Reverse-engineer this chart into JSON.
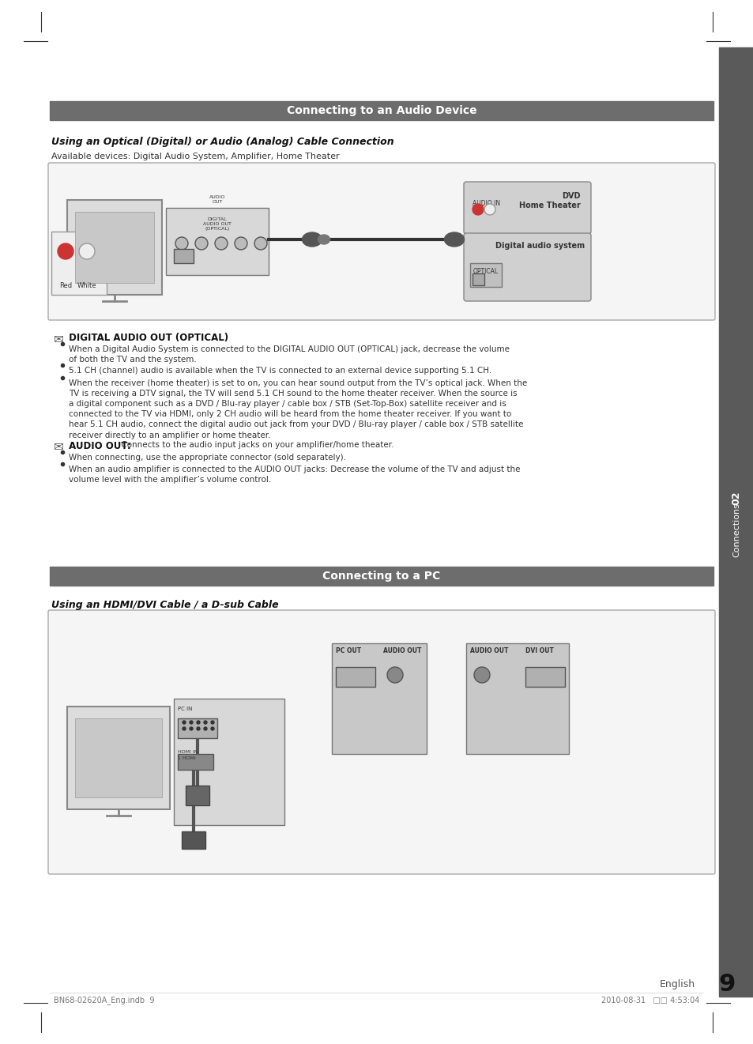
{
  "page_bg": "#ffffff",
  "header_bar_color": "#6d6d6d",
  "header_text_color": "#ffffff",
  "section1_title": "Connecting to an Audio Device",
  "section2_title": "Connecting to a PC",
  "subsection1_title": "Using an Optical (Digital) or Audio (Analog) Cable Connection",
  "subsection2_title": "Using an HDMI/DVI Cable / a D-sub Cable",
  "available_devices_text": "Available devices: Digital Audio System, Amplifier, Home Theater",
  "sidebar_text": "02  Connections",
  "sidebar_bg": "#5a5a5a",
  "page_number": "9",
  "page_number_label": "English",
  "footer_left": "BN68-02620A_Eng.indb  9",
  "footer_right": "2010-08-31   □□ 4:53:04",
  "diagram_box_bg": "#f0f0f0",
  "diagram_box_border": "#cccccc",
  "note_icon_color": "#555555",
  "bullet_text_1_heading": "DIGITAL AUDIO OUT (OPTICAL)",
  "bullet_texts_1": [
    "When a Digital Audio System is connected to the DIGITAL AUDIO OUT (OPTICAL) jack, decrease the volume of both the TV and the system.",
    "5.1 CH (channel) audio is available when the TV is connected to an external device supporting 5.1 CH.",
    "When the receiver (home theater) is set to on, you can hear sound output from the TV’s optical jack. When the TV is receiving a DTV signal, the TV will send 5.1 CH sound to the home theater receiver. When the source is a digital component such as a DVD / Blu-ray player / cable box / STB (Set-Top-Box) satellite receiver and is connected to the TV via HDMI, only 2 CH audio will be heard from the home theater receiver. If you want to hear 5.1 CH audio, connect the digital audio out jack from your DVD / Blu-ray player / cable box / STB satellite receiver directly to an amplifier or home theater."
  ],
  "bullet_text_2_heading": "AUDIO OUT",
  "bullet_texts_2": [
    "Connects to the audio input jacks on your amplifier/home theater.",
    "When connecting, use the appropriate connector (sold separately).",
    "When an audio amplifier is connected to the AUDIO OUT jacks: Decrease the volume of the TV and adjust the volume level with the amplifier’s volume control."
  ],
  "margin_marks_color": "#333333",
  "corner_mark_color": "#aaaaaa"
}
